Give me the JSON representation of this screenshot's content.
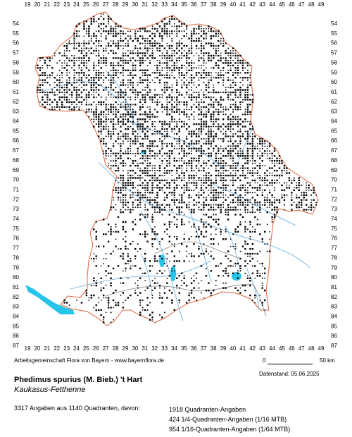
{
  "map": {
    "x_ticks": [
      "19",
      "20",
      "21",
      "22",
      "23",
      "24",
      "25",
      "26",
      "27",
      "28",
      "29",
      "30",
      "31",
      "32",
      "33",
      "34",
      "35",
      "36",
      "37",
      "38",
      "39",
      "40",
      "41",
      "42",
      "43",
      "44",
      "45",
      "46",
      "47",
      "48",
      "49"
    ],
    "y_ticks": [
      "54",
      "55",
      "56",
      "57",
      "58",
      "59",
      "60",
      "61",
      "62",
      "63",
      "64",
      "65",
      "66",
      "67",
      "68",
      "69",
      "70",
      "71",
      "72",
      "73",
      "74",
      "75",
      "76",
      "77",
      "78",
      "79",
      "80",
      "81",
      "82",
      "83",
      "84",
      "85",
      "86",
      "87"
    ],
    "colors": {
      "border": "#e0603a",
      "river": "#5aa8e0",
      "lake": "#27c3e8",
      "district_line": "#808080",
      "marker": "#000000"
    },
    "marker_legend": {
      "square": "Quadranten-Angaben",
      "small_square": "1/4-Quadranten-Angaben (1/16 MTB)",
      "dot": "1/16-Quadranten-Angaben (1/64 MTB)"
    }
  },
  "footer": {
    "credit": "Arbeitsgemeinschaft Flora von Bayern - www.bayernflora.de",
    "scale_zero": "0",
    "scale_fifty": "50 km",
    "date": "Datenstand: 05.06.2025",
    "species_name": "Phedimus spurius (M. Bieb.) 't Hart",
    "common_name": "Kaukasus-Fetthenne",
    "stats_summary": "3317 Angaben aus 1140 Quadranten, davon:",
    "stats_lines": [
      "1918 Quadranten-Angaben",
      "424 1/4-Quadranten-Angaben (1/16 MTB)",
      "954 1/16-Quadranten-Angaben (1/64 MTB)"
    ]
  }
}
